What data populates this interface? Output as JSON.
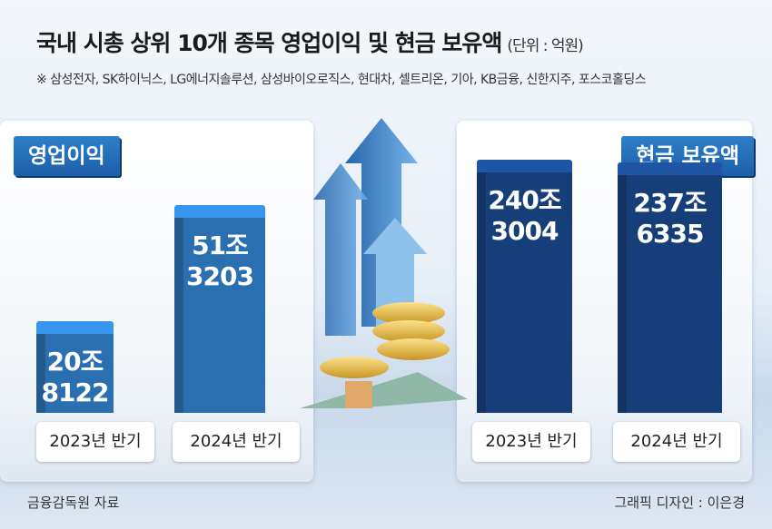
{
  "header": {
    "title": "국내 시총 상위 10개 종목 영업이익 및 현금 보유액",
    "unit": "(단위 : 억원)",
    "note": "※ 삼성전자, SK하이닉스, LG에너지솔루션, 삼성바이오로직스, 현대차, 셀트리온, 기아, KB금융, 신한지주, 포스코홀딩스"
  },
  "chart_data": [
    {
      "type": "bar",
      "title": "영업이익",
      "categories": [
        "2023년 반기",
        "2024년 반기"
      ],
      "values": [
        208122,
        513203
      ],
      "value_labels": [
        "20조\n8122",
        "51조\n3203"
      ],
      "color": "#2a6fb0"
    },
    {
      "type": "bar",
      "title": "현금 보유액",
      "categories": [
        "2023년 반기",
        "2024년 반기"
      ],
      "values": [
        2403004,
        2376335
      ],
      "value_labels": [
        "240조\n3004",
        "237조\n6335"
      ],
      "color": "#163f7a"
    }
  ],
  "footer": {
    "source": "금융감독원 자료",
    "credit": "그래픽 디자인 : 이은경"
  }
}
